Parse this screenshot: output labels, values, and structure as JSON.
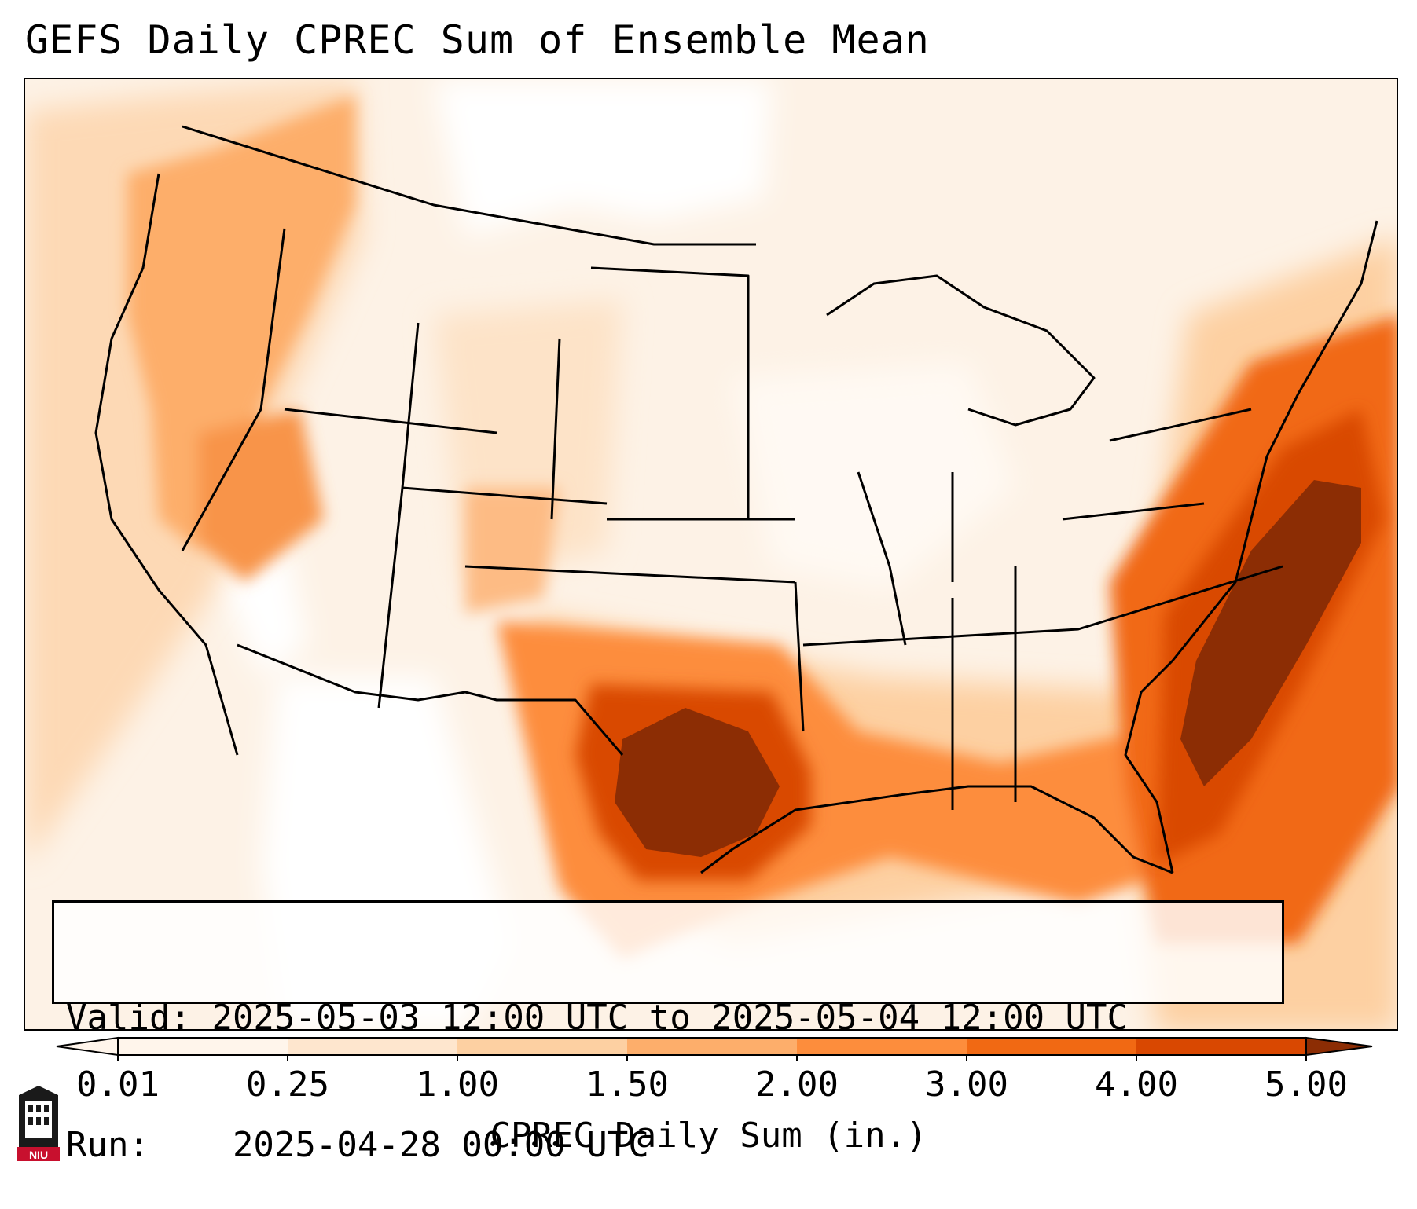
{
  "title": "GEFS Daily CPREC Sum of Ensemble Mean",
  "info_box": {
    "valid_label": "Valid:",
    "valid_value": "2025-05-03 12:00 UTC to 2025-05-04 12:00 UTC",
    "run_label": "Run:",
    "run_value": "2025-04-28 00:00 UTC"
  },
  "colorbar": {
    "label": "CPREC Daily Sum (in.)",
    "ticks": [
      "0.01",
      "0.25",
      "1.00",
      "1.50",
      "2.00",
      "3.00",
      "4.00",
      "5.00"
    ],
    "colors": [
      "#fff5eb",
      "#fee6ce",
      "#fdd0a2",
      "#fdae6b",
      "#fd8d3c",
      "#f16913",
      "#d94801",
      "#8c2d04"
    ],
    "extend": "both"
  },
  "map": {
    "projection": "CONUS Lambert",
    "background_color": "#fdf2e6",
    "max_color": "#8c2d04",
    "features": [
      "coastlines",
      "state borders",
      "country borders"
    ]
  },
  "logo": {
    "text": "NIU",
    "icon": "university-tower-icon"
  }
}
